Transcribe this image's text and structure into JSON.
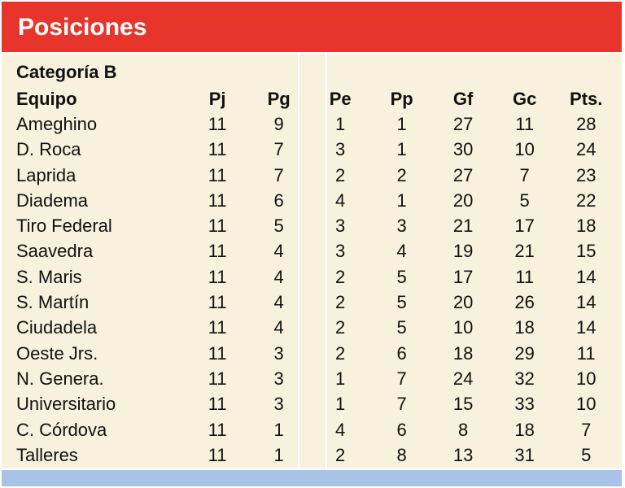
{
  "title": "Posiciones",
  "subtitle": "Categoría B",
  "columns": [
    "Equipo",
    "Pj",
    "Pg",
    "Pe",
    "Pp",
    "Gf",
    "Gc",
    "Pts."
  ],
  "rows": [
    [
      "Ameghino",
      "11",
      "9",
      "1",
      "1",
      "27",
      "11",
      "28"
    ],
    [
      "D. Roca",
      "11",
      "7",
      "3",
      "1",
      "30",
      "10",
      "24"
    ],
    [
      "Laprida",
      "11",
      "7",
      "2",
      "2",
      "27",
      "7",
      "23"
    ],
    [
      "Diadema",
      "11",
      "6",
      "4",
      "1",
      "20",
      "5",
      "22"
    ],
    [
      "Tiro Federal",
      "11",
      "5",
      "3",
      "3",
      "21",
      "17",
      "18"
    ],
    [
      "Saavedra",
      "11",
      "4",
      "3",
      "4",
      "19",
      "21",
      "15"
    ],
    [
      "S. Maris",
      "11",
      "4",
      "2",
      "5",
      "17",
      "11",
      "14"
    ],
    [
      "S. Martín",
      "11",
      "4",
      "2",
      "5",
      "20",
      "26",
      "14"
    ],
    [
      "Ciudadela",
      "11",
      "4",
      "2",
      "5",
      "10",
      "18",
      "14"
    ],
    [
      "Oeste Jrs.",
      "11",
      "3",
      "2",
      "6",
      "18",
      "29",
      "11"
    ],
    [
      "N. Genera.",
      "11",
      "3",
      "1",
      "7",
      "24",
      "32",
      "10"
    ],
    [
      "Universitario",
      "11",
      "3",
      "1",
      "7",
      "15",
      "33",
      "10"
    ],
    [
      "C. Córdova",
      "11",
      "1",
      "4",
      "6",
      "8",
      "18",
      "7"
    ],
    [
      "Talleres",
      "11",
      "1",
      "2",
      "8",
      "13",
      "31",
      "5"
    ]
  ],
  "colors": {
    "header_bg": "#e8352c",
    "body_bg": "#f7f1dd",
    "footer_bg": "#a8c3e6"
  }
}
